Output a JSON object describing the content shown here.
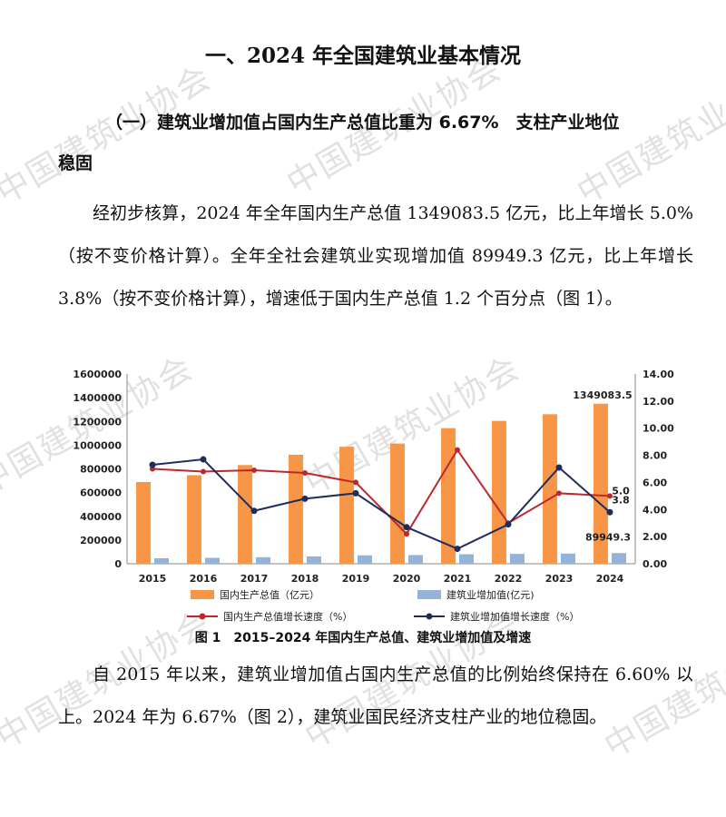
{
  "watermark": "中国建筑业协会",
  "heading": "一、2024 年全国建筑业基本情况",
  "section": {
    "line1": "（一）建筑业增加值占国内生产总值比重为 6.67%　支柱产业地位",
    "line2": "稳固"
  },
  "paragraph1": "经初步核算，2024 年全年国内生产总值 1349083.5 亿元，比上年增长 5.0%（按不变价格计算）。全年全社会建筑业实现增加值 89949.3 亿元，比上年增长 3.8%（按不变价格计算），增速低于国内生产总值 1.2 个百分点（图 1）。",
  "caption": "图 1　2015–2024 年国内生产总值、建筑业增加值及增速",
  "paragraph2": "自 2015 年以来，建筑业增加值占国内生产总值的比例始终保持在 6.60% 以上。2024 年为 6.67%（图 2），建筑业国民经济支柱产业的地位稳固。",
  "chart_data": {
    "type": "bar",
    "categories": [
      "2015",
      "2016",
      "2017",
      "2018",
      "2019",
      "2020",
      "2021",
      "2022",
      "2023",
      "2024"
    ],
    "y_left": {
      "min": 0,
      "max": 1600000,
      "step": 200000,
      "ticks": [
        "0",
        "200000",
        "400000",
        "600000",
        "800000",
        "1000000",
        "1200000",
        "1400000",
        "1600000"
      ]
    },
    "y_right": {
      "min": 0,
      "max": 14,
      "step": 2,
      "ticks": [
        "0.00",
        "2.00",
        "4.00",
        "6.00",
        "8.00",
        "10.00",
        "12.00",
        "14.00"
      ]
    },
    "series": [
      {
        "name": "国内生产总值（亿元）",
        "kind": "bar",
        "axis": "left",
        "color": "#F79646",
        "values": [
          688858,
          746395,
          832036,
          919281,
          986515,
          1013567,
          1143670,
          1204724,
          1260582,
          1349083.5
        ]
      },
      {
        "name": "建筑业增加值(亿元)",
        "kind": "bar",
        "axis": "left",
        "color": "#95B3D7",
        "values": [
          46627,
          49703,
          55689,
          61808,
          70904,
          72996,
          80138,
          83383,
          85691,
          89949.3
        ]
      },
      {
        "name": "国内生产总值增长速度（%）",
        "kind": "line",
        "axis": "right",
        "color": "#C0262D",
        "values": [
          7.0,
          6.8,
          6.9,
          6.7,
          6.0,
          2.2,
          8.4,
          3.0,
          5.2,
          5.0
        ]
      },
      {
        "name": "建筑业增加值增长速度（%）",
        "kind": "line",
        "axis": "right",
        "color": "#1F2D5A",
        "values": [
          7.3,
          7.7,
          3.9,
          4.8,
          5.2,
          2.7,
          1.1,
          2.9,
          7.1,
          3.8
        ]
      }
    ],
    "data_labels": [
      "1349083.5",
      "89949.3",
      "5.0",
      "3.8"
    ],
    "grid": false,
    "legend_position": "bottom"
  }
}
